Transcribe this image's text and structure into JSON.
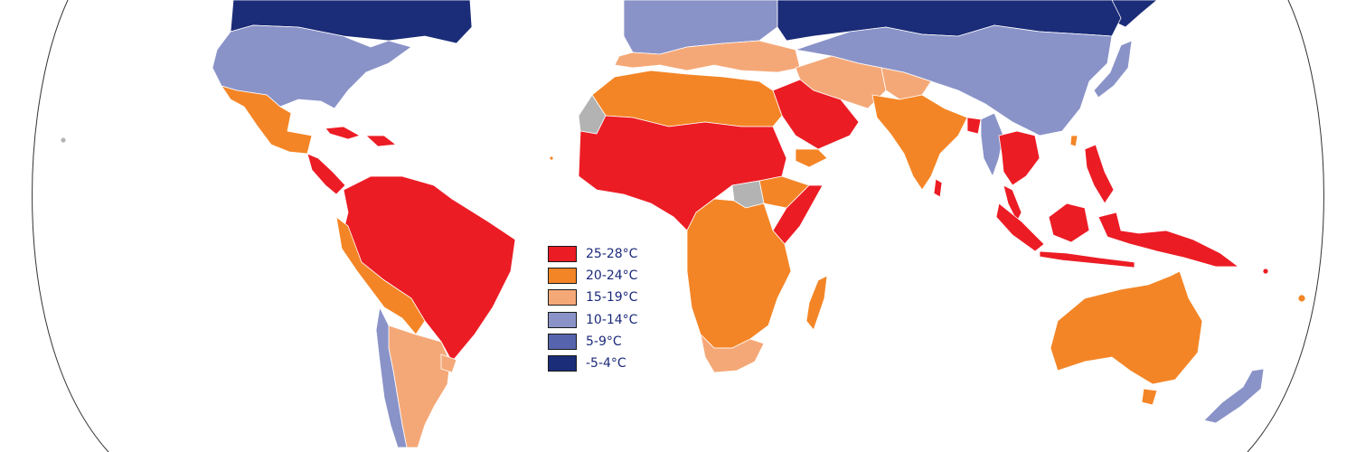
{
  "legend": {
    "items": [
      {
        "label": "25-28°C",
        "color": "#ec1c24"
      },
      {
        "label": "20-24°C",
        "color": "#f48526"
      },
      {
        "label": "15-19°C",
        "color": "#f5a877"
      },
      {
        "label": "10-14°C",
        "color": "#8a93c8"
      },
      {
        "label": "5-9°C",
        "color": "#5664ae"
      },
      {
        "label": "-5-4°C",
        "color": "#1b2c78"
      }
    ]
  },
  "no_data_color": "#b3b3b3",
  "ocean_color": "#ffffff",
  "outline_color": "#333333"
}
